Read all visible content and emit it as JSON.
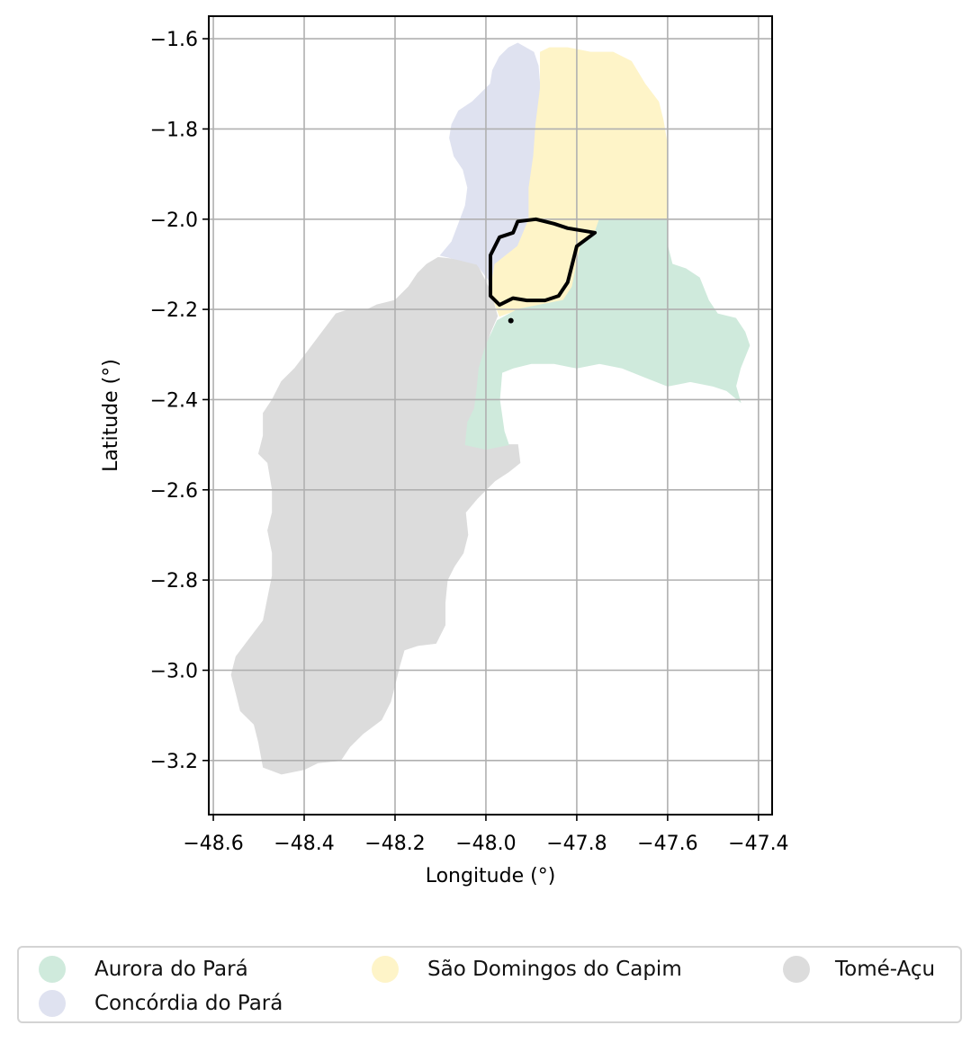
{
  "axes": {
    "xlabel": "Longitude (°)",
    "ylabel": "Latitude (°)",
    "xlim": [
      -48.61,
      -47.37
    ],
    "ylim": [
      -3.32,
      -1.55
    ],
    "x_ticks": [
      -48.6,
      -48.4,
      -48.2,
      -48.0,
      -47.8,
      -47.6,
      -47.4
    ],
    "x_tick_labels": [
      "−48.6",
      "−48.4",
      "−48.2",
      "−48.0",
      "−47.8",
      "−47.6",
      "−47.4"
    ],
    "y_ticks": [
      -1.6,
      -1.8,
      -2.0,
      -2.2,
      -2.4,
      -2.6,
      -2.8,
      -3.0,
      -3.2
    ],
    "y_tick_labels": [
      "−1.6",
      "−1.8",
      "−2.0",
      "−2.2",
      "−2.4",
      "−2.6",
      "−2.8",
      "−3.0",
      "−3.2"
    ],
    "grid": true
  },
  "regions": [
    {
      "name": "Tomé-Açu",
      "color": "#dcdcdc",
      "coords": [
        [
          -48.105,
          -2.085
        ],
        [
          -48.06,
          -2.09
        ],
        [
          -48.02,
          -2.1
        ],
        [
          -47.99,
          -2.16
        ],
        [
          -47.975,
          -2.215
        ],
        [
          -47.99,
          -2.25
        ],
        [
          -48.0,
          -2.28
        ],
        [
          -48.015,
          -2.33
        ],
        [
          -48.02,
          -2.38
        ],
        [
          -48.025,
          -2.42
        ],
        [
          -48.04,
          -2.45
        ],
        [
          -48.045,
          -2.5
        ],
        [
          -48.0,
          -2.51
        ],
        [
          -47.965,
          -2.5
        ],
        [
          -47.93,
          -2.5
        ],
        [
          -47.925,
          -2.54
        ],
        [
          -47.95,
          -2.56
        ],
        [
          -47.98,
          -2.58
        ],
        [
          -48.02,
          -2.62
        ],
        [
          -48.045,
          -2.65
        ],
        [
          -48.04,
          -2.7
        ],
        [
          -48.05,
          -2.74
        ],
        [
          -48.07,
          -2.77
        ],
        [
          -48.085,
          -2.8
        ],
        [
          -48.09,
          -2.85
        ],
        [
          -48.09,
          -2.9
        ],
        [
          -48.11,
          -2.94
        ],
        [
          -48.15,
          -2.945
        ],
        [
          -48.18,
          -2.955
        ],
        [
          -48.19,
          -2.99
        ],
        [
          -48.2,
          -3.03
        ],
        [
          -48.21,
          -3.07
        ],
        [
          -48.23,
          -3.11
        ],
        [
          -48.27,
          -3.14
        ],
        [
          -48.3,
          -3.17
        ],
        [
          -48.32,
          -3.2
        ],
        [
          -48.37,
          -3.205
        ],
        [
          -48.4,
          -3.22
        ],
        [
          -48.45,
          -3.23
        ],
        [
          -48.49,
          -3.215
        ],
        [
          -48.5,
          -3.16
        ],
        [
          -48.51,
          -3.12
        ],
        [
          -48.54,
          -3.09
        ],
        [
          -48.55,
          -3.05
        ],
        [
          -48.56,
          -3.01
        ],
        [
          -48.55,
          -2.97
        ],
        [
          -48.52,
          -2.93
        ],
        [
          -48.49,
          -2.89
        ],
        [
          -48.48,
          -2.84
        ],
        [
          -48.47,
          -2.79
        ],
        [
          -48.47,
          -2.74
        ],
        [
          -48.48,
          -2.69
        ],
        [
          -48.47,
          -2.65
        ],
        [
          -48.47,
          -2.6
        ],
        [
          -48.48,
          -2.54
        ],
        [
          -48.5,
          -2.52
        ],
        [
          -48.49,
          -2.48
        ],
        [
          -48.49,
          -2.43
        ],
        [
          -48.47,
          -2.4
        ],
        [
          -48.45,
          -2.36
        ],
        [
          -48.42,
          -2.33
        ],
        [
          -48.39,
          -2.29
        ],
        [
          -48.36,
          -2.25
        ],
        [
          -48.33,
          -2.21
        ],
        [
          -48.3,
          -2.2
        ],
        [
          -48.26,
          -2.2
        ],
        [
          -48.24,
          -2.19
        ],
        [
          -48.2,
          -2.18
        ],
        [
          -48.17,
          -2.15
        ],
        [
          -48.15,
          -2.12
        ],
        [
          -48.13,
          -2.1
        ]
      ]
    },
    {
      "name": "Concórdia do Pará",
      "color": "#dfe2f0",
      "coords": [
        [
          -47.885,
          -1.66
        ],
        [
          -47.895,
          -1.63
        ],
        [
          -47.93,
          -1.61
        ],
        [
          -47.95,
          -1.62
        ],
        [
          -47.97,
          -1.64
        ],
        [
          -47.985,
          -1.67
        ],
        [
          -47.99,
          -1.7
        ],
        [
          -48.01,
          -1.72
        ],
        [
          -48.03,
          -1.74
        ],
        [
          -48.06,
          -1.76
        ],
        [
          -48.075,
          -1.79
        ],
        [
          -48.08,
          -1.82
        ],
        [
          -48.07,
          -1.86
        ],
        [
          -48.05,
          -1.89
        ],
        [
          -48.04,
          -1.93
        ],
        [
          -48.045,
          -1.97
        ],
        [
          -48.06,
          -2.01
        ],
        [
          -48.075,
          -2.05
        ],
        [
          -48.1,
          -2.08
        ],
        [
          -48.06,
          -2.09
        ],
        [
          -48.02,
          -2.1
        ],
        [
          -47.99,
          -2.14
        ],
        [
          -47.96,
          -2.12
        ],
        [
          -47.93,
          -2.09
        ],
        [
          -47.91,
          -2.05
        ],
        [
          -47.9,
          -2.0
        ],
        [
          -47.905,
          -1.93
        ],
        [
          -47.895,
          -1.86
        ],
        [
          -47.89,
          -1.8
        ],
        [
          -47.88,
          -1.72
        ]
      ]
    },
    {
      "name": "São Domingos do Capim",
      "color": "#fef4c8",
      "coords": [
        [
          -47.88,
          -1.63
        ],
        [
          -47.86,
          -1.62
        ],
        [
          -47.82,
          -1.62
        ],
        [
          -47.77,
          -1.63
        ],
        [
          -47.72,
          -1.63
        ],
        [
          -47.68,
          -1.65
        ],
        [
          -47.65,
          -1.7
        ],
        [
          -47.62,
          -1.74
        ],
        [
          -47.61,
          -1.78
        ],
        [
          -47.6,
          -1.84
        ],
        [
          -47.6,
          -1.9
        ],
        [
          -47.6,
          -1.96
        ],
        [
          -47.6,
          -2.0
        ],
        [
          -47.66,
          -2.0
        ],
        [
          -47.72,
          -2.0
        ],
        [
          -47.75,
          -2.01
        ],
        [
          -47.76,
          -2.03
        ],
        [
          -47.79,
          -2.05
        ],
        [
          -47.8,
          -2.1
        ],
        [
          -47.81,
          -2.15
        ],
        [
          -47.83,
          -2.18
        ],
        [
          -47.88,
          -2.19
        ],
        [
          -47.93,
          -2.2
        ],
        [
          -47.97,
          -2.215
        ],
        [
          -47.99,
          -2.16
        ],
        [
          -47.98,
          -2.1
        ],
        [
          -47.93,
          -2.06
        ],
        [
          -47.905,
          -2.0
        ],
        [
          -47.905,
          -1.93
        ],
        [
          -47.895,
          -1.86
        ],
        [
          -47.89,
          -1.79
        ],
        [
          -47.88,
          -1.71
        ]
      ]
    },
    {
      "name": "Aurora do Pará",
      "color": "#cfeadc",
      "coords": [
        [
          -47.75,
          -2.0
        ],
        [
          -47.6,
          -2.0
        ],
        [
          -47.6,
          -2.06
        ],
        [
          -47.59,
          -2.1
        ],
        [
          -47.56,
          -2.11
        ],
        [
          -47.53,
          -2.13
        ],
        [
          -47.51,
          -2.18
        ],
        [
          -47.49,
          -2.21
        ],
        [
          -47.45,
          -2.22
        ],
        [
          -47.43,
          -2.25
        ],
        [
          -47.42,
          -2.28
        ],
        [
          -47.44,
          -2.33
        ],
        [
          -47.45,
          -2.37
        ],
        [
          -47.44,
          -2.405
        ],
        [
          -47.47,
          -2.38
        ],
        [
          -47.5,
          -2.37
        ],
        [
          -47.55,
          -2.36
        ],
        [
          -47.6,
          -2.37
        ],
        [
          -47.65,
          -2.35
        ],
        [
          -47.7,
          -2.33
        ],
        [
          -47.75,
          -2.32
        ],
        [
          -47.8,
          -2.33
        ],
        [
          -47.85,
          -2.32
        ],
        [
          -47.9,
          -2.32
        ],
        [
          -47.94,
          -2.33
        ],
        [
          -47.965,
          -2.34
        ],
        [
          -47.97,
          -2.4
        ],
        [
          -47.96,
          -2.47
        ],
        [
          -47.95,
          -2.5
        ],
        [
          -48.0,
          -2.51
        ],
        [
          -48.045,
          -2.5
        ],
        [
          -48.04,
          -2.45
        ],
        [
          -48.025,
          -2.42
        ],
        [
          -48.02,
          -2.38
        ],
        [
          -48.015,
          -2.33
        ],
        [
          -48.0,
          -2.28
        ],
        [
          -47.975,
          -2.225
        ],
        [
          -47.93,
          -2.2
        ],
        [
          -47.88,
          -2.19
        ],
        [
          -47.83,
          -2.18
        ],
        [
          -47.81,
          -2.15
        ],
        [
          -47.8,
          -2.1
        ],
        [
          -47.79,
          -2.05
        ],
        [
          -47.76,
          -2.03
        ]
      ]
    }
  ],
  "highlight": {
    "name": "",
    "coords": [
      [
        -47.93,
        -2.005
      ],
      [
        -47.89,
        -2.0
      ],
      [
        -47.85,
        -2.01
      ],
      [
        -47.82,
        -2.02
      ],
      [
        -47.79,
        -2.025
      ],
      [
        -47.76,
        -2.03
      ],
      [
        -47.8,
        -2.06
      ],
      [
        -47.81,
        -2.1
      ],
      [
        -47.82,
        -2.14
      ],
      [
        -47.84,
        -2.17
      ],
      [
        -47.87,
        -2.18
      ],
      [
        -47.91,
        -2.18
      ],
      [
        -47.94,
        -2.175
      ],
      [
        -47.97,
        -2.19
      ],
      [
        -47.99,
        -2.17
      ],
      [
        -47.99,
        -2.13
      ],
      [
        -47.99,
        -2.08
      ],
      [
        -47.97,
        -2.04
      ],
      [
        -47.94,
        -2.03
      ]
    ],
    "dot": [
      -47.945,
      -2.225
    ]
  },
  "legend": {
    "items": [
      {
        "label": "Aurora do Pará",
        "color": "#cfeadc"
      },
      {
        "label": "Concórdia do Pará",
        "color": "#dfe2f0"
      },
      {
        "label": "São Domingos do Capim",
        "color": "#fef4c8"
      },
      {
        "label": "Tomé-Açu",
        "color": "#dcdcdc"
      }
    ]
  }
}
